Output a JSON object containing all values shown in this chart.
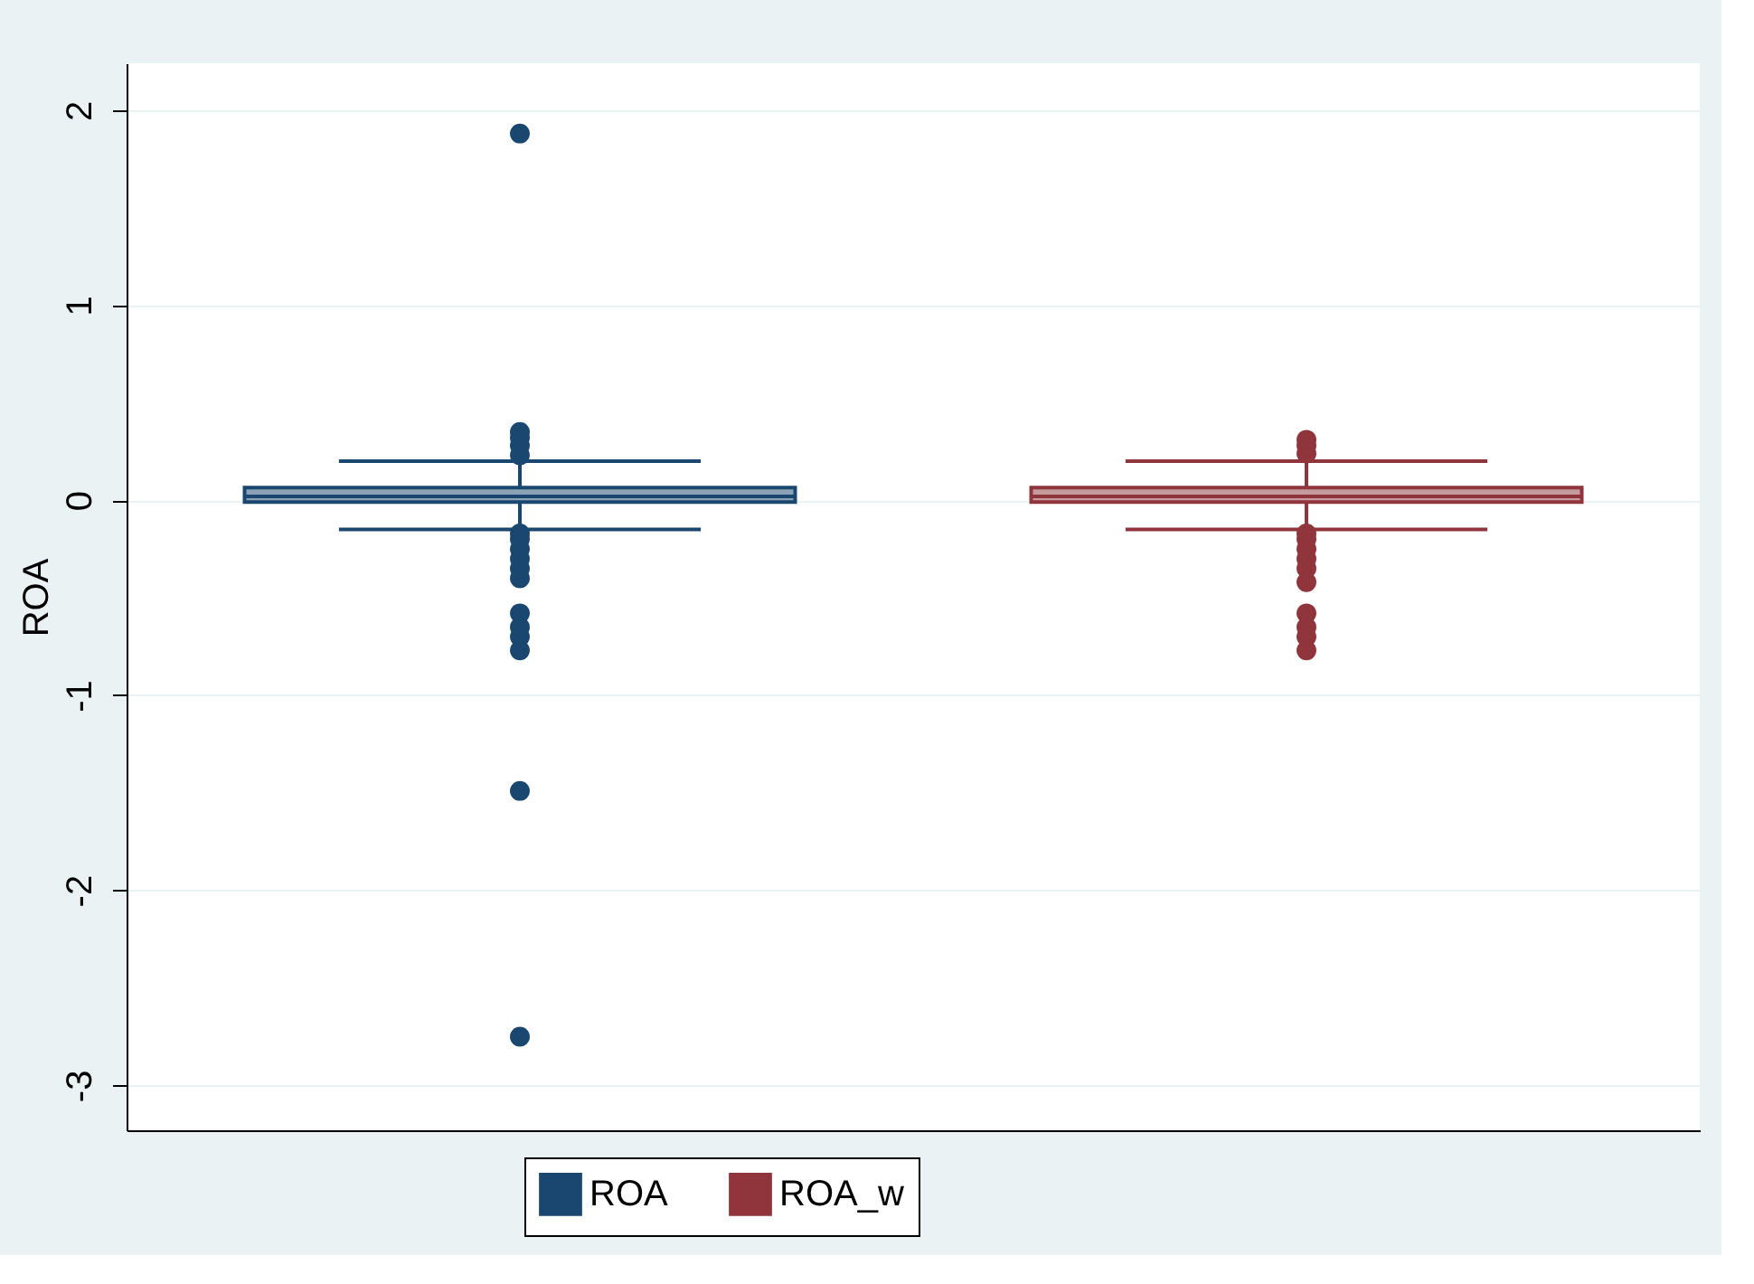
{
  "chart_data": {
    "type": "box",
    "ylabel": "ROA",
    "categories": [
      null
    ],
    "series": [
      {
        "name": "ROA",
        "color": "#1a476f",
        "boxes": [
          {
            "low": -0.15,
            "q1": -0.01,
            "median": 0.02,
            "q3": 0.065,
            "high": 0.2,
            "outliers": [
              1.88,
              0.35,
              0.32,
              0.28,
              0.23,
              -0.17,
              -0.2,
              -0.25,
              -0.3,
              -0.35,
              -0.4,
              -0.58,
              -0.65,
              -0.7,
              -0.77,
              -1.49,
              -2.75
            ]
          }
        ]
      },
      {
        "name": "ROA_w",
        "color": "#90353b",
        "boxes": [
          {
            "low": -0.15,
            "q1": -0.01,
            "median": 0.02,
            "q3": 0.065,
            "high": 0.2,
            "outliers": [
              0.31,
              0.28,
              0.24,
              -0.17,
              -0.2,
              -0.25,
              -0.3,
              -0.35,
              -0.42,
              -0.58,
              -0.65,
              -0.7,
              -0.77
            ]
          }
        ]
      }
    ],
    "ylim": [
      -3.23,
      2.24
    ],
    "yticks": [
      -3,
      -2,
      -1,
      0,
      1,
      2
    ],
    "grid": "y",
    "legend": "bottom",
    "tick_labels": "y",
    "marker": "circle"
  }
}
